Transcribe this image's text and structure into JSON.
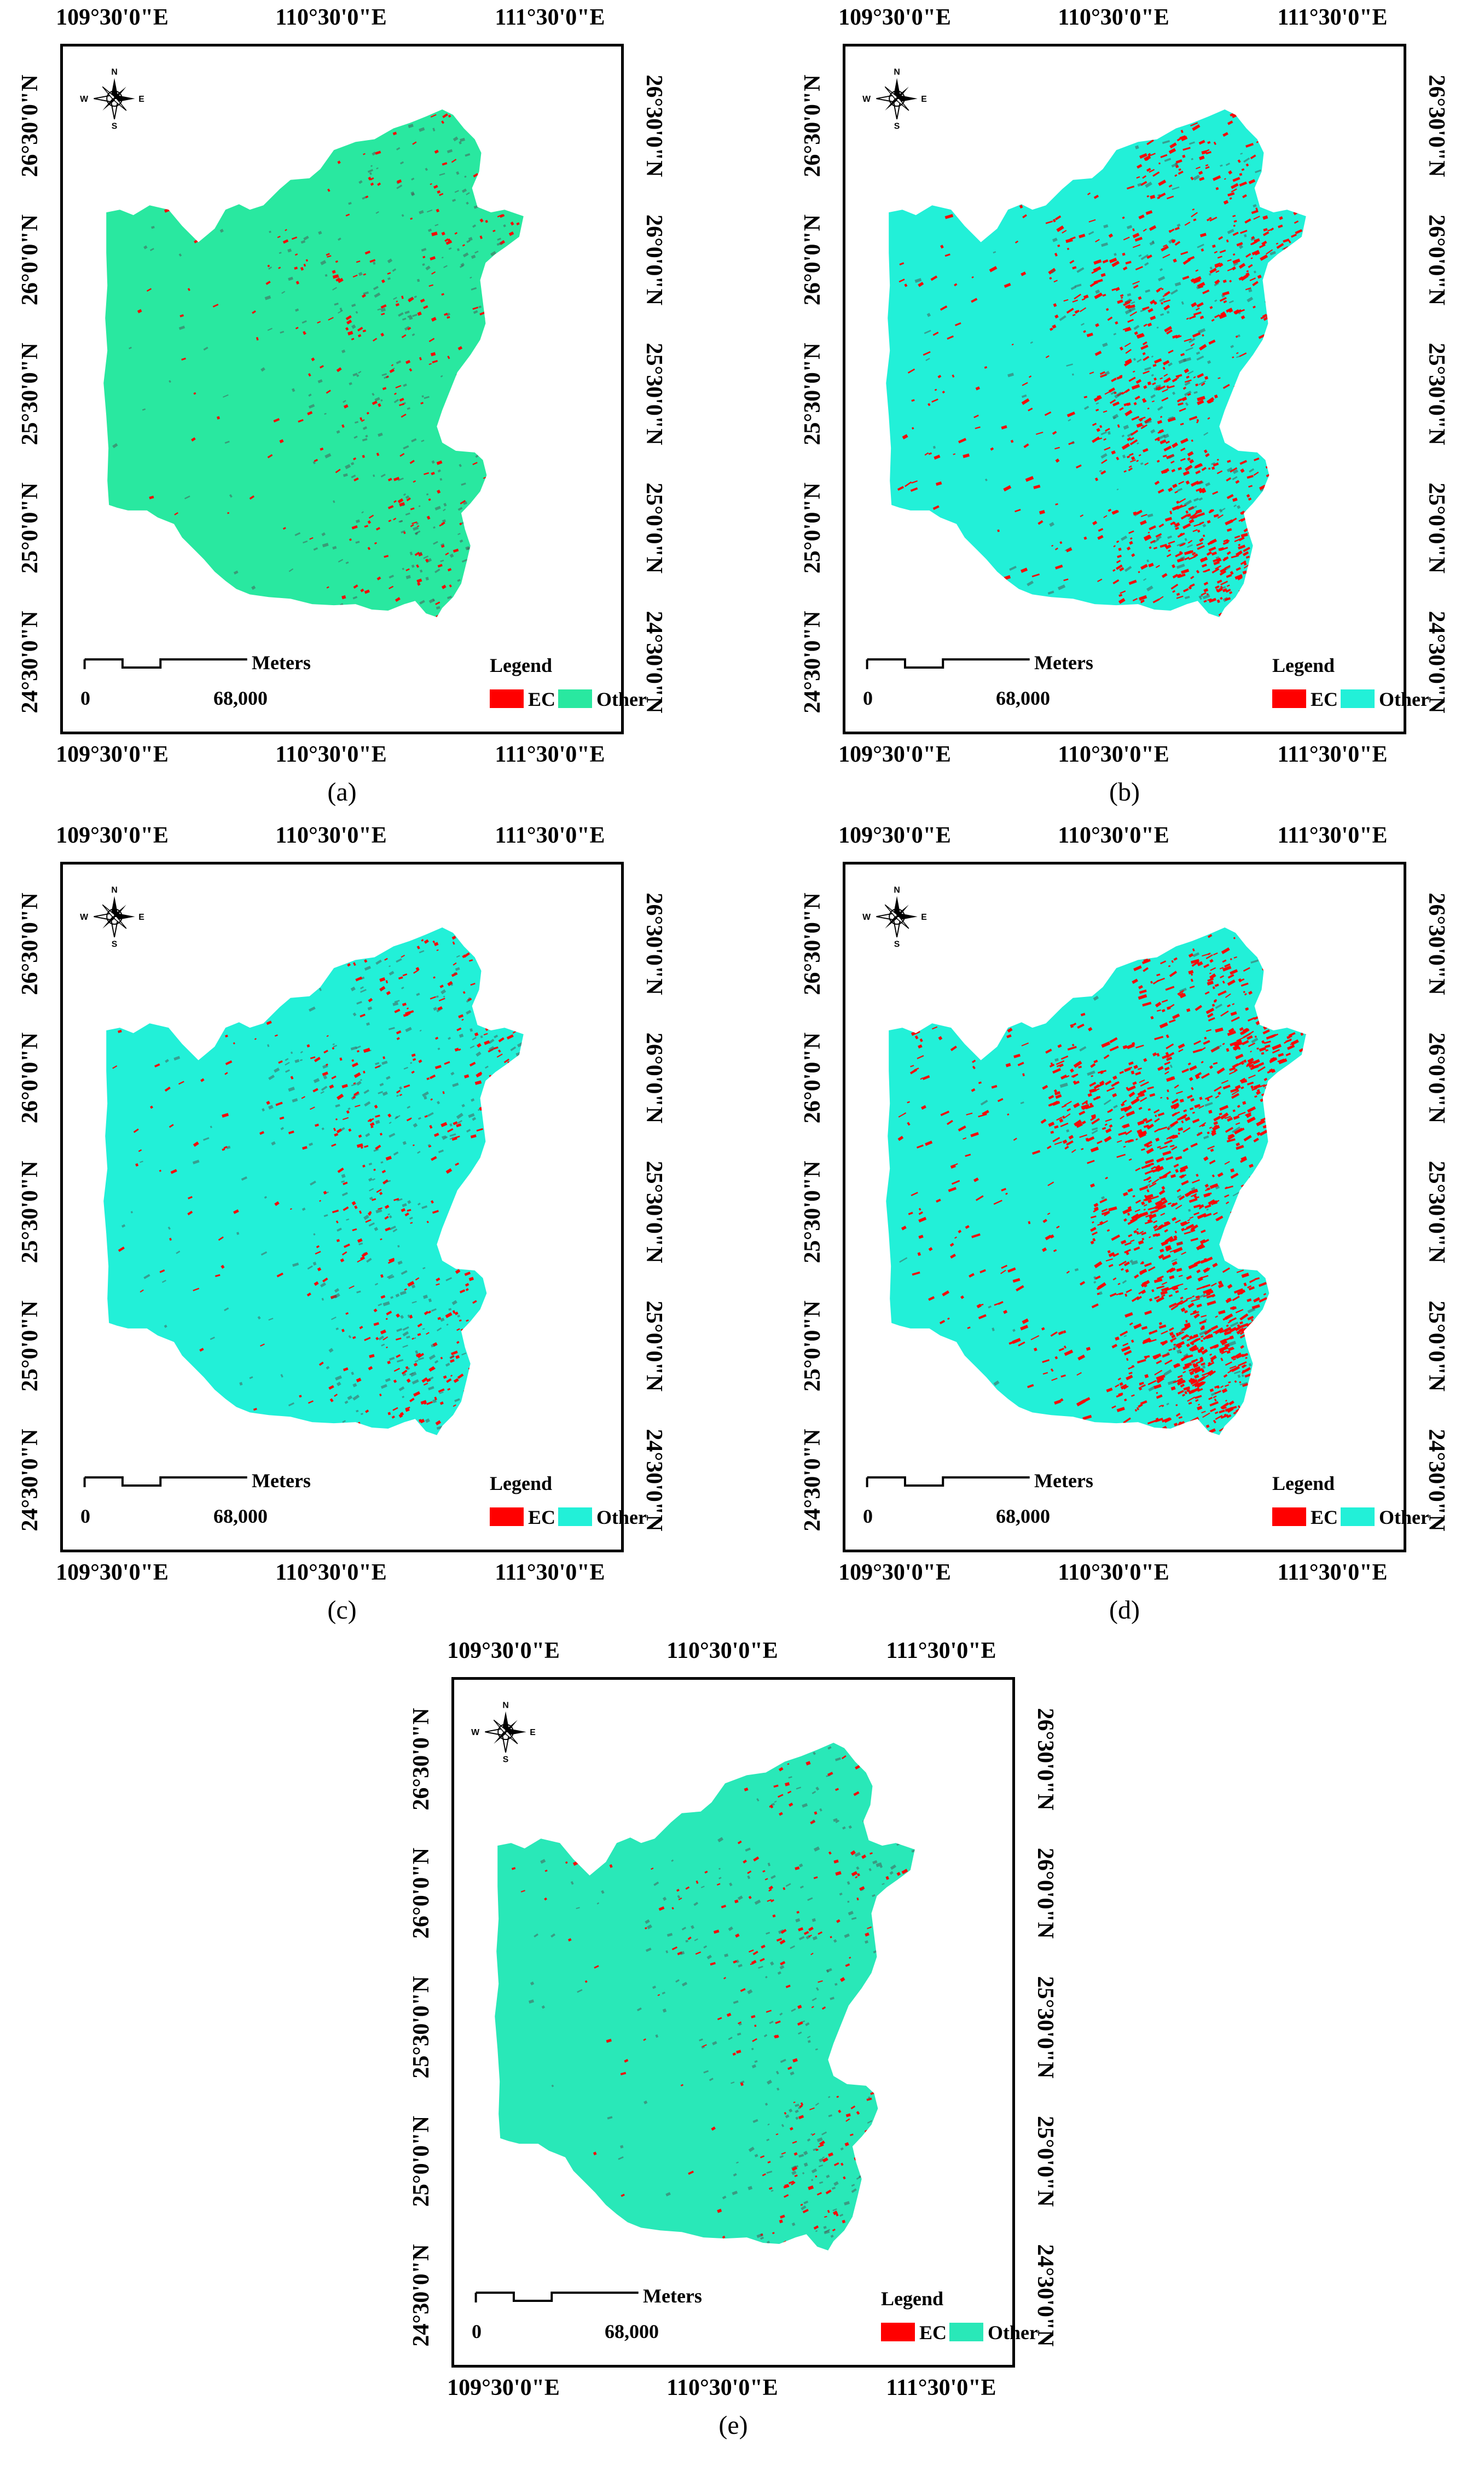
{
  "panels": [
    {
      "id": "a",
      "caption": "(a)",
      "lon_labels": [
        "109°30'0\"E",
        "110°30'0\"E",
        "111°30'0\"E"
      ],
      "lat_labels": [
        "26°30'0\"N",
        "26°0'0\"N",
        "25°30'0\"N",
        "25°0'0\"N",
        "24°30'0\"N"
      ],
      "scale": {
        "start": "0",
        "end": "68,000",
        "unit": "Meters"
      },
      "legend": {
        "title": "Legend",
        "items": [
          {
            "label": "EC",
            "color": "#ff0000"
          },
          {
            "label": "Other",
            "color": "#29e8a0"
          }
        ]
      },
      "compass": {
        "n": "N",
        "s": "S",
        "e": "E",
        "w": "W"
      },
      "region_color": "#29e8a0",
      "ec_density": 0.25
    },
    {
      "id": "b",
      "caption": "(b)",
      "lon_labels": [
        "109°30'0\"E",
        "110°30'0\"E",
        "111°30'0\"E"
      ],
      "lat_labels": [
        "26°30'0\"N",
        "26°0'0\"N",
        "25°30'0\"N",
        "25°0'0\"N",
        "24°30'0\"N"
      ],
      "scale": {
        "start": "0",
        "end": "68,000",
        "unit": "Meters"
      },
      "legend": {
        "title": "Legend",
        "items": [
          {
            "label": "EC",
            "color": "#ff0000"
          },
          {
            "label": "Other",
            "color": "#22f0d8"
          }
        ]
      },
      "compass": {
        "n": "N",
        "s": "S",
        "e": "E",
        "w": "W"
      },
      "region_color": "#22f0d8",
      "ec_density": 0.75
    },
    {
      "id": "c",
      "caption": "(c)",
      "lon_labels": [
        "109°30'0\"E",
        "110°30'0\"E",
        "111°30'0\"E"
      ],
      "lat_labels": [
        "26°30'0\"N",
        "26°0'0\"N",
        "25°30'0\"N",
        "25°0'0\"N",
        "24°30'0\"N"
      ],
      "scale": {
        "start": "0",
        "end": "68,000",
        "unit": "Meters"
      },
      "legend": {
        "title": "Legend",
        "items": [
          {
            "label": "EC",
            "color": "#ff0000"
          },
          {
            "label": "Other",
            "color": "#22f0d8"
          }
        ]
      },
      "compass": {
        "n": "N",
        "s": "S",
        "e": "E",
        "w": "W"
      },
      "region_color": "#22f0d8",
      "ec_density": 0.4
    },
    {
      "id": "d",
      "caption": "(d)",
      "lon_labels": [
        "109°30'0\"E",
        "110°30'0\"E",
        "111°30'0\"E"
      ],
      "lat_labels": [
        "26°30'0\"N",
        "26°0'0\"N",
        "25°30'0\"N",
        "25°0'0\"N",
        "24°30'0\"N"
      ],
      "scale": {
        "start": "0",
        "end": "68,000",
        "unit": "Meters"
      },
      "legend": {
        "title": "Legend",
        "items": [
          {
            "label": "EC",
            "color": "#ff0000"
          },
          {
            "label": "Other",
            "color": "#22f0d8"
          }
        ]
      },
      "compass": {
        "n": "N",
        "s": "S",
        "e": "E",
        "w": "W"
      },
      "region_color": "#22f0d8",
      "ec_density": 1.0
    },
    {
      "id": "e",
      "caption": "(e)",
      "lon_labels": [
        "109°30'0\"E",
        "110°30'0\"E",
        "111°30'0\"E"
      ],
      "lat_labels": [
        "26°30'0\"N",
        "26°0'0\"N",
        "25°30'0\"N",
        "25°0'0\"N",
        "24°30'0\"N"
      ],
      "scale": {
        "start": "0",
        "end": "68,000",
        "unit": "Meters"
      },
      "legend": {
        "title": "Legend",
        "items": [
          {
            "label": "EC",
            "color": "#ff0000"
          },
          {
            "label": "Other",
            "color": "#29e8b8"
          }
        ]
      },
      "compass": {
        "n": "N",
        "s": "S",
        "e": "E",
        "w": "W"
      },
      "region_color": "#29e8b8",
      "ec_density": 0.2
    }
  ]
}
